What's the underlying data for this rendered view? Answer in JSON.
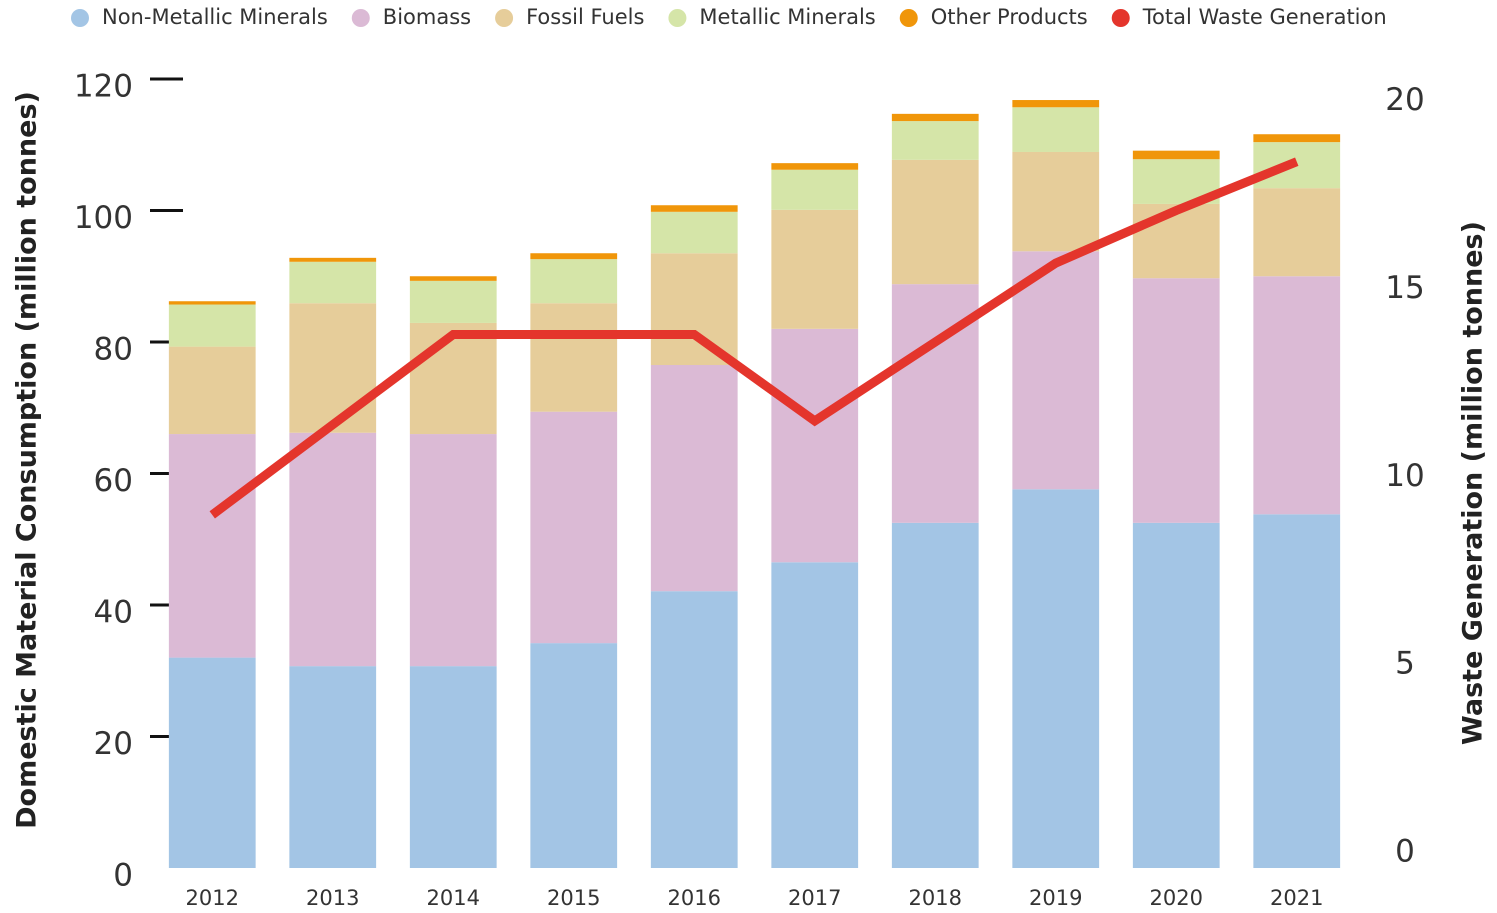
{
  "chart_data": {
    "type": "bar",
    "stacked": true,
    "y_label": "Domestic Material Consumption (million tonnes)",
    "y2_label": "Waste Generation (million tonnes)",
    "categories": [
      "2012",
      "2013",
      "2014",
      "2015",
      "2016",
      "2017",
      "2018",
      "2019",
      "2020",
      "2021"
    ],
    "ylim": [
      0,
      120
    ],
    "yticks": [
      0,
      20,
      40,
      60,
      80,
      100,
      120
    ],
    "y2lim": [
      0,
      20.6
    ],
    "y2ticks": [
      0,
      5,
      10,
      15,
      20
    ],
    "legend": "top",
    "series": [
      {
        "name": "Non-Metallic Minerals",
        "color": "#a3c5e5",
        "values": [
          32,
          30.7,
          30.7,
          34.2,
          42.1,
          46.5,
          52.5,
          57.6,
          52.5,
          53.8
        ]
      },
      {
        "name": "Biomass",
        "color": "#dbbad5",
        "values": [
          34,
          35.5,
          35.3,
          35.2,
          34.4,
          35.5,
          36.3,
          36.2,
          37.2,
          36.2
        ]
      },
      {
        "name": "Fossil Fuels",
        "color": "#e6cd9a",
        "values": [
          13.3,
          19.7,
          16.9,
          16.5,
          17.0,
          18.1,
          18.9,
          15.1,
          11.3,
          13.4
        ]
      },
      {
        "name": "Metallic Minerals",
        "color": "#d5e5a8",
        "values": [
          6.4,
          6.3,
          6.4,
          6.7,
          6.3,
          6.1,
          5.9,
          6.8,
          6.8,
          7.0
        ]
      },
      {
        "name": "Other Products",
        "color": "#f0960a",
        "values": [
          0.5,
          0.6,
          0.7,
          0.9,
          1.0,
          1.0,
          1.1,
          1.1,
          1.3,
          1.2
        ]
      },
      {
        "name": "Total Waste Generation",
        "color": "#e4352c",
        "type": "line",
        "axis": "y2",
        "values": [
          9.0,
          11.4,
          13.8,
          13.8,
          13.8,
          11.5,
          13.6,
          15.7,
          17.1,
          18.4
        ]
      }
    ]
  }
}
